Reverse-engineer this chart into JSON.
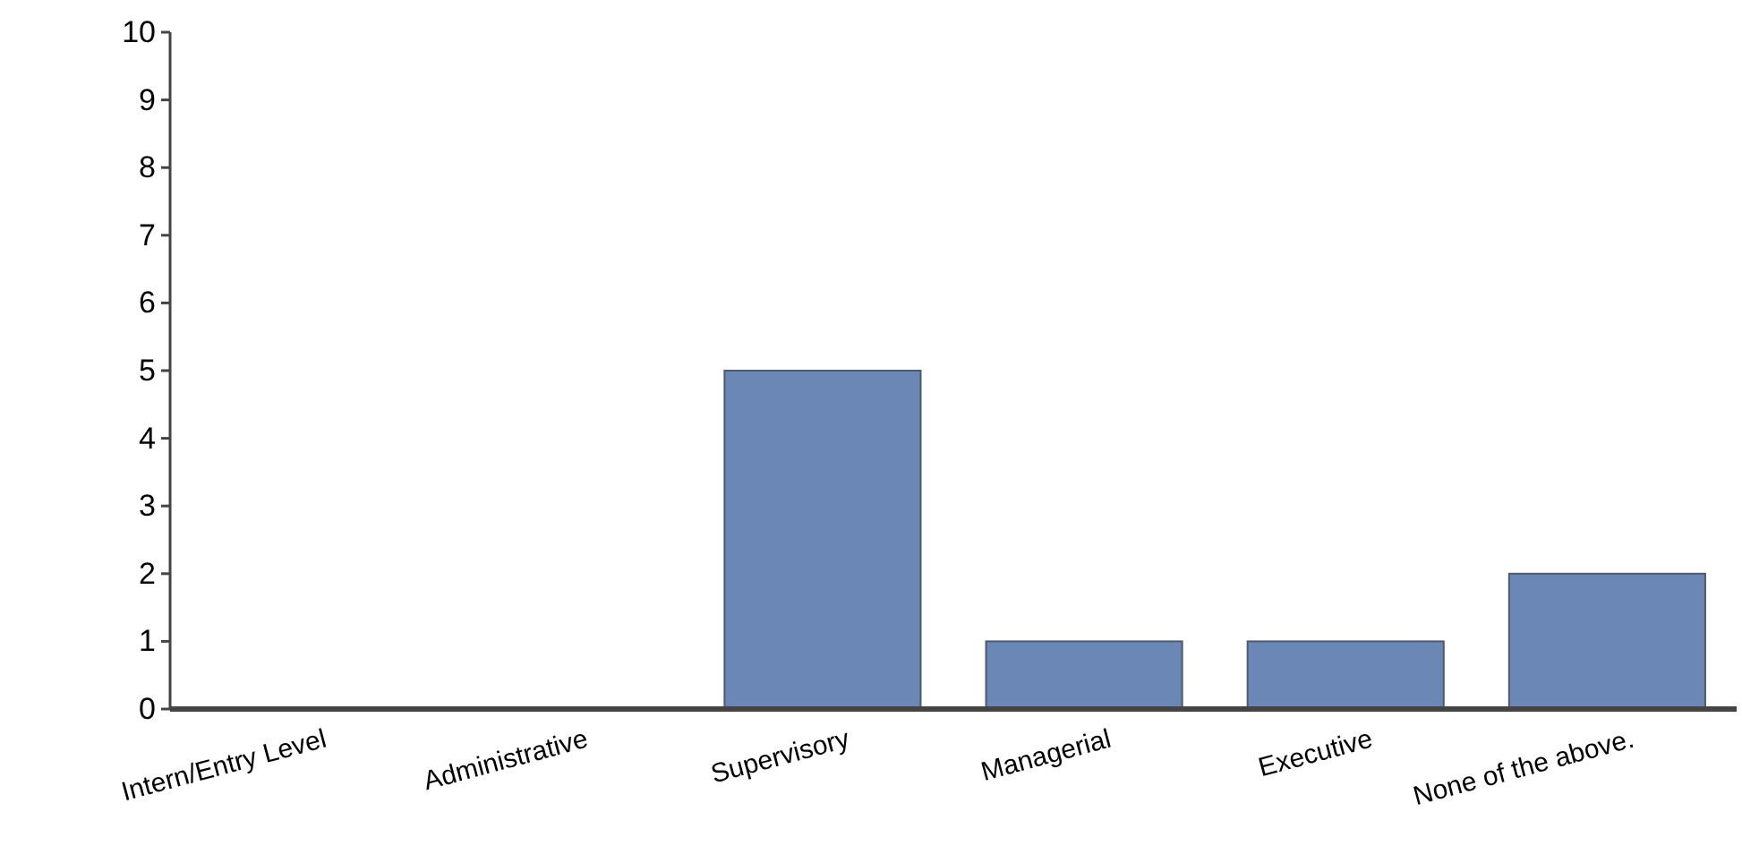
{
  "chart_data": {
    "type": "bar",
    "categories": [
      "Intern/Entry Level",
      "Administrative",
      "Supervisory",
      "Managerial",
      "Executive",
      "None of the above."
    ],
    "values": [
      0,
      0,
      5,
      1,
      1,
      2
    ],
    "color": "#6a87b5",
    "ylim": [
      0,
      10
    ],
    "yticks": [
      0,
      1,
      2,
      3,
      4,
      5,
      6,
      7,
      8,
      9,
      10
    ],
    "grid": false
  }
}
